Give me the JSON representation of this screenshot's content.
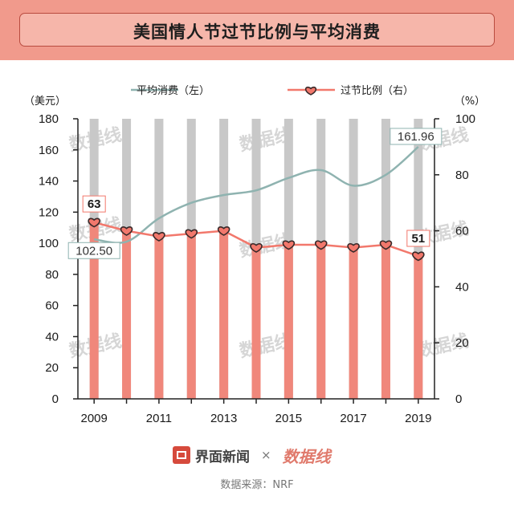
{
  "title": "美国情人节过节比例与平均消费",
  "legend": {
    "line_label": "平均消费（左）",
    "bar_label": "过节比例（右）"
  },
  "colors": {
    "title_band": "#f19a8c",
    "title_box": "#f6b6aa",
    "line": "#8fb3b0",
    "bar": "#f0877b",
    "bar_bg": "#c8c8c8",
    "heart": "#f2786c",
    "heart_stroke": "#3a2a2a"
  },
  "chart_data": {
    "type": "bar",
    "categories": [
      "2009",
      "2010",
      "2011",
      "2012",
      "2013",
      "2014",
      "2015",
      "2016",
      "2017",
      "2018",
      "2019"
    ],
    "x_tick_labels": [
      "2009",
      "2011",
      "2013",
      "2015",
      "2017",
      "2019"
    ],
    "series": [
      {
        "name": "过节比例（右）",
        "axis": "right",
        "kind": "bar",
        "values": [
          63,
          60,
          58,
          59,
          60,
          54,
          55,
          55,
          54,
          55,
          51
        ]
      },
      {
        "name": "平均消费（左）",
        "axis": "left",
        "kind": "line",
        "values": [
          102.5,
          101,
          116,
          126,
          131,
          134,
          142,
          147,
          137,
          144,
          161.96
        ]
      }
    ],
    "y_left": {
      "unit": "（美元）",
      "ylim": [
        0,
        180
      ],
      "ticks": [
        0,
        20,
        40,
        60,
        80,
        100,
        120,
        140,
        160,
        180
      ]
    },
    "y_right": {
      "unit": "（%）",
      "ylim": [
        0,
        100
      ],
      "ticks": [
        0,
        20,
        40,
        60,
        80,
        100
      ]
    },
    "annotations": {
      "line_first": "102.50",
      "line_last": "161.96",
      "bar_first": "63",
      "bar_last": "51"
    },
    "legend_position": "top"
  },
  "footer": {
    "brand": "界面新闻",
    "times": "×",
    "partner": "数据线",
    "source": "数据来源：NRF"
  }
}
